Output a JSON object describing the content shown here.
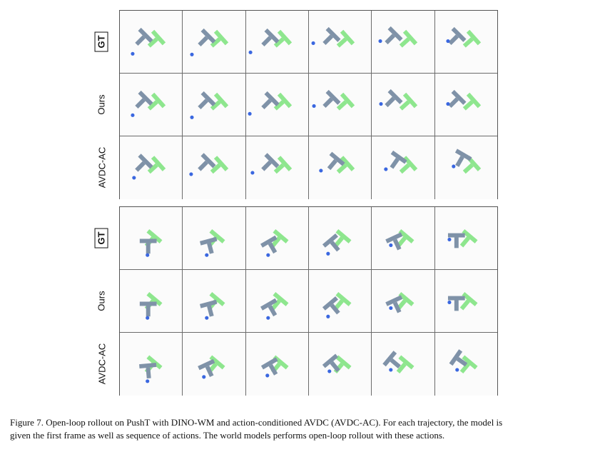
{
  "figure": {
    "row_labels": [
      "GT",
      "Ours",
      "AVDC-AC"
    ],
    "frames_per_row": 6,
    "colors": {
      "target_t": "#8ee68e",
      "object_t": "#7f92a8",
      "agent": "#3a67e0",
      "grid_line": "#6b6b6b",
      "cell_bg": "#fbfbfb"
    }
  },
  "caption": {
    "line1": "Figure 7. Open-loop rollout on PushT with DINO-WM and action-conditioned AVDC (AVDC-AC). For each trajectory, the model is",
    "line2": "given the first frame as well as sequence of actions. The world models performs open-loop rollout with these actions."
  }
}
